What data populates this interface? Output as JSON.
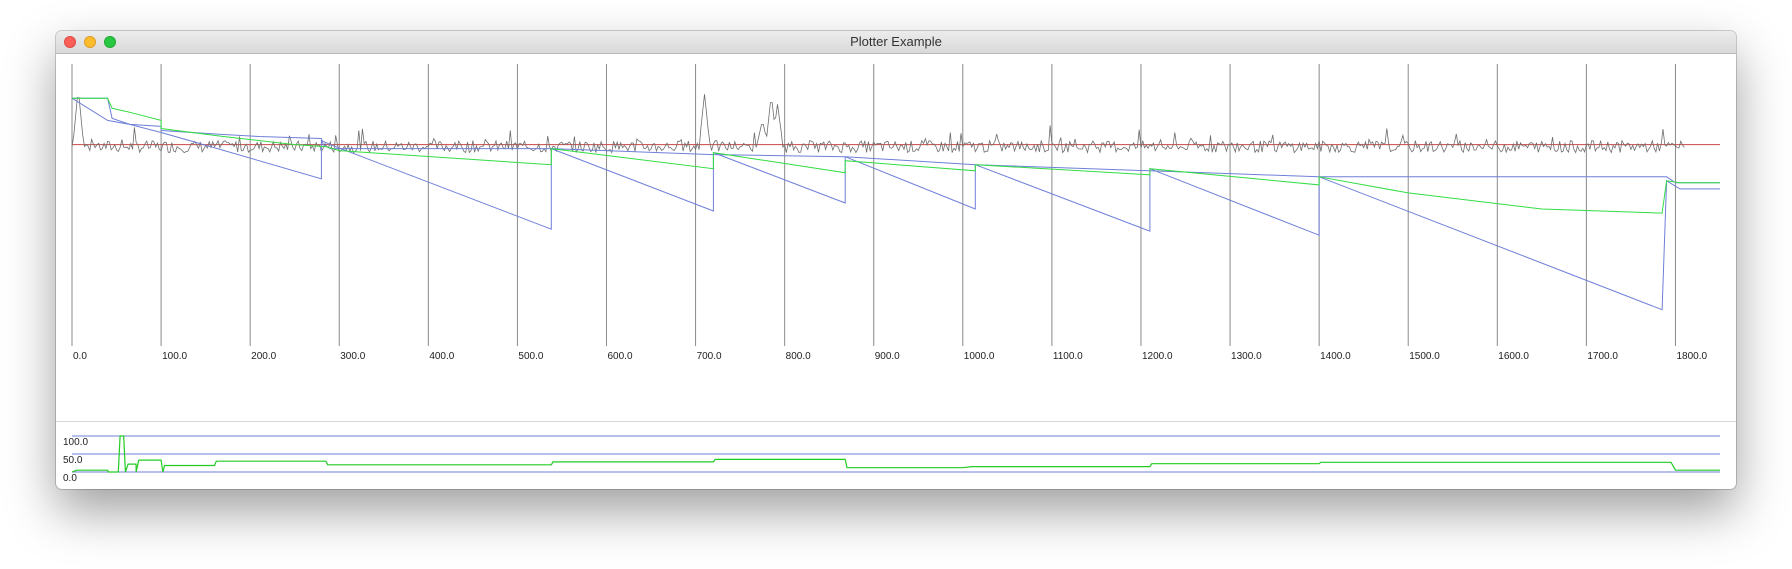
{
  "window": {
    "title": "Plotter Example"
  },
  "colors": {
    "grid": "#8a8a8a",
    "noise": "#6e6e6e",
    "reference": "#cc4444",
    "blue": "#6f7fd8",
    "green": "#33dd44",
    "sub_grid": "#6f7fd8",
    "sub_series": "#22cc22"
  },
  "chart_data": [
    {
      "type": "line",
      "xlim": [
        0,
        1850
      ],
      "ylim": [
        -1.0,
        0.4
      ],
      "x_ticks": [
        0,
        100,
        200,
        300,
        400,
        500,
        600,
        700,
        800,
        900,
        1000,
        1100,
        1200,
        1300,
        1400,
        1500,
        1600,
        1700,
        1800
      ],
      "x_tick_labels": [
        "0.0",
        "100.0",
        "200.0",
        "300.0",
        "400.0",
        "500.0",
        "600.0",
        "700.0",
        "800.0",
        "900.0",
        "1000.0",
        "1100.0",
        "1200.0",
        "1300.0",
        "1400.0",
        "1500.0",
        "1600.0",
        "1700.0",
        "1800.0"
      ],
      "grid": "vertical",
      "series": [
        {
          "color": "reference",
          "points": [
            [
              0,
              0.0
            ],
            [
              1850,
              0.0
            ]
          ]
        },
        {
          "color": "noise",
          "style": "noise",
          "x_range": [
            0,
            1810
          ],
          "spikes": [
            [
              7,
              0.28
            ],
            [
              710,
              0.25
            ],
            [
              775,
              0.12
            ],
            [
              785,
              0.25
            ],
            [
              792,
              0.2
            ]
          ]
        },
        {
          "color": "blue",
          "points": [
            [
              0,
              0.23
            ],
            [
              40,
              0.12
            ],
            [
              65,
              0.1
            ],
            [
              100,
              0.06
            ],
            [
              140,
              0.01
            ],
            [
              280,
              -0.17
            ],
            [
              280,
              0.02
            ],
            [
              290,
              0.0
            ],
            [
              538,
              -0.42
            ],
            [
              538,
              -0.02
            ],
            [
              720,
              -0.33
            ],
            [
              720,
              -0.04
            ],
            [
              868,
              -0.29
            ],
            [
              868,
              -0.06
            ],
            [
              1014,
              -0.32
            ],
            [
              1014,
              -0.1
            ],
            [
              1210,
              -0.43
            ],
            [
              1210,
              -0.12
            ],
            [
              1400,
              -0.45
            ],
            [
              1400,
              -0.16
            ],
            [
              1785,
              -0.82
            ],
            [
              1790,
              -0.18
            ],
            [
              1805,
              -0.22
            ],
            [
              1850,
              -0.22
            ]
          ]
        },
        {
          "color": "blue",
          "points": [
            [
              0,
              0.23
            ],
            [
              40,
              0.23
            ],
            [
              45,
              0.13
            ],
            [
              65,
              0.1
            ],
            [
              100,
              0.09
            ],
            [
              100,
              0.07
            ],
            [
              170,
              0.05
            ],
            [
              210,
              0.04
            ],
            [
              280,
              0.03
            ],
            [
              282,
              0.0
            ],
            [
              290,
              -0.02
            ],
            [
              538,
              -0.02
            ],
            [
              720,
              -0.05
            ],
            [
              868,
              -0.06
            ],
            [
              1014,
              -0.1
            ],
            [
              1210,
              -0.13
            ],
            [
              1400,
              -0.16
            ],
            [
              1790,
              -0.16
            ],
            [
              1800,
              -0.19
            ],
            [
              1850,
              -0.19
            ]
          ]
        },
        {
          "color": "green",
          "points": [
            [
              0,
              0.23
            ],
            [
              40,
              0.23
            ],
            [
              45,
              0.18
            ],
            [
              65,
              0.16
            ],
            [
              100,
              0.12
            ],
            [
              100,
              0.08
            ],
            [
              170,
              0.04
            ],
            [
              250,
              0.0
            ],
            [
              285,
              -0.01
            ],
            [
              300,
              -0.03
            ],
            [
              538,
              -0.1
            ],
            [
              538,
              -0.02
            ],
            [
              720,
              -0.12
            ],
            [
              720,
              -0.04
            ],
            [
              868,
              -0.14
            ],
            [
              868,
              -0.08
            ],
            [
              1014,
              -0.13
            ],
            [
              1014,
              -0.1
            ],
            [
              1210,
              -0.15
            ],
            [
              1210,
              -0.12
            ],
            [
              1400,
              -0.2
            ],
            [
              1400,
              -0.16
            ],
            [
              1500,
              -0.24
            ],
            [
              1650,
              -0.32
            ],
            [
              1785,
              -0.34
            ],
            [
              1790,
              -0.18
            ],
            [
              1805,
              -0.19
            ],
            [
              1850,
              -0.19
            ]
          ]
        }
      ]
    },
    {
      "type": "line",
      "xlim": [
        0,
        1850
      ],
      "ylim": [
        0,
        100
      ],
      "y_ticks": [
        0,
        50,
        100
      ],
      "y_tick_labels": [
        "0.0",
        "50.0",
        "100.0"
      ],
      "grid": "horizontal",
      "series": [
        {
          "color": "sub_series",
          "points": [
            [
              0,
              0
            ],
            [
              5,
              5
            ],
            [
              40,
              5
            ],
            [
              41,
              0
            ],
            [
              52,
              0
            ],
            [
              54,
              100
            ],
            [
              58,
              100
            ],
            [
              60,
              0
            ],
            [
              63,
              22
            ],
            [
              72,
              22
            ],
            [
              72,
              0
            ],
            [
              75,
              33
            ],
            [
              100,
              33
            ],
            [
              102,
              0
            ],
            [
              104,
              18
            ],
            [
              160,
              18
            ],
            [
              162,
              30
            ],
            [
              285,
              30
            ],
            [
              287,
              20
            ],
            [
              538,
              20
            ],
            [
              540,
              28
            ],
            [
              720,
              28
            ],
            [
              722,
              35
            ],
            [
              868,
              35
            ],
            [
              870,
              12
            ],
            [
              1000,
              12
            ],
            [
              1010,
              15
            ],
            [
              1210,
              15
            ],
            [
              1212,
              23
            ],
            [
              1400,
              23
            ],
            [
              1402,
              27
            ],
            [
              1795,
              27
            ],
            [
              1800,
              5
            ],
            [
              1850,
              5
            ]
          ]
        }
      ]
    }
  ]
}
